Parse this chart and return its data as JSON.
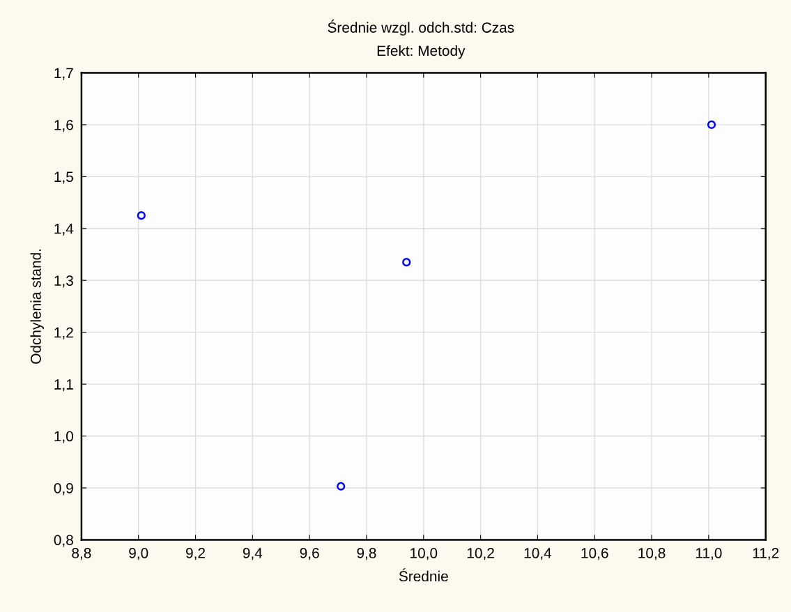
{
  "chart_data": {
    "type": "scatter",
    "title": "Średnie wzgl. odch.std: Czas",
    "subtitle": "Efekt: Metody",
    "xlabel": "Średnie",
    "ylabel": "Odchylenia stand.",
    "x": [
      9.01,
      9.71,
      9.94,
      11.01
    ],
    "series": [
      {
        "color": "#0000ff",
        "values": [
          1.425,
          0.903,
          1.335,
          1.6
        ]
      }
    ],
    "marker": "circle",
    "grid": true,
    "xlim": [
      8.8,
      11.2
    ],
    "ylim": [
      0.8,
      1.7
    ],
    "xticks": [
      {
        "value": 8.8,
        "label": "8,8"
      },
      {
        "value": 9.0,
        "label": "9,0"
      },
      {
        "value": 9.2,
        "label": "9,2"
      },
      {
        "value": 9.4,
        "label": "9,4"
      },
      {
        "value": 9.6,
        "label": "9,6"
      },
      {
        "value": 9.8,
        "label": "9,8"
      },
      {
        "value": 10.0,
        "label": "10,0"
      },
      {
        "value": 10.2,
        "label": "10,2"
      },
      {
        "value": 10.4,
        "label": "10,4"
      },
      {
        "value": 10.6,
        "label": "10,6"
      },
      {
        "value": 10.8,
        "label": "10,8"
      },
      {
        "value": 11.0,
        "label": "11,0"
      },
      {
        "value": 11.2,
        "label": "11,2"
      }
    ],
    "yticks": [
      {
        "value": 0.8,
        "label": "0,8"
      },
      {
        "value": 0.9,
        "label": "0,9"
      },
      {
        "value": 1.0,
        "label": "1,0"
      },
      {
        "value": 1.1,
        "label": "1,1"
      },
      {
        "value": 1.2,
        "label": "1,2"
      },
      {
        "value": 1.3,
        "label": "1,3"
      },
      {
        "value": 1.4,
        "label": "1,4"
      },
      {
        "value": 1.5,
        "label": "1,5"
      },
      {
        "value": 1.6,
        "label": "1,6"
      },
      {
        "value": 1.7,
        "label": "1,7"
      }
    ]
  }
}
